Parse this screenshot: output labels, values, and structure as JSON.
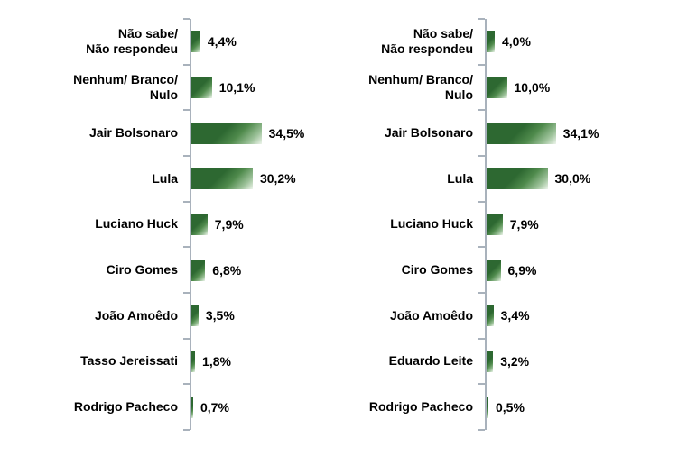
{
  "page": {
    "background": "#ffffff",
    "description": "Two horizontal bar charts of Brazilian presidential poll results, values in percent with comma decimals"
  },
  "colors": {
    "bar_dark": "#2d6831",
    "bar_light": "#eef5ec",
    "axis": "#a9b2bc",
    "text": "#000000"
  },
  "chart_data": [
    {
      "type": "bar",
      "orientation": "horizontal",
      "title": "",
      "xlabel": "",
      "ylabel": "",
      "xlim": [
        0,
        40
      ],
      "grid": false,
      "legend": null,
      "categories": [
        "Não sabe/\nNão respondeu",
        "Nenhum/ Branco/\nNulo",
        "Jair Bolsonaro",
        "Lula",
        "Luciano Huck",
        "Ciro Gomes",
        "João Amoêdo",
        "Tasso Jereissati",
        "Rodrigo Pacheco"
      ],
      "values": [
        4.4,
        10.1,
        34.5,
        30.2,
        7.9,
        6.8,
        3.5,
        1.8,
        0.7
      ],
      "value_labels": [
        "4,4%",
        "10,1%",
        "34,5%",
        "30,2%",
        "7,9%",
        "6,8%",
        "3,5%",
        "1,8%",
        "0,7%"
      ]
    },
    {
      "type": "bar",
      "orientation": "horizontal",
      "title": "",
      "xlabel": "",
      "ylabel": "",
      "xlim": [
        0,
        40
      ],
      "grid": false,
      "legend": null,
      "categories": [
        "Não sabe/\nNão respondeu",
        "Nenhum/ Branco/\nNulo",
        "Jair Bolsonaro",
        "Lula",
        "Luciano Huck",
        "Ciro Gomes",
        "João Amoêdo",
        "Eduardo Leite",
        "Rodrigo Pacheco"
      ],
      "values": [
        4.0,
        10.0,
        34.1,
        30.0,
        7.9,
        6.9,
        3.4,
        3.2,
        0.5
      ],
      "value_labels": [
        "4,0%",
        "10,0%",
        "34,1%",
        "30,0%",
        "7,9%",
        "6,9%",
        "3,4%",
        "3,2%",
        "0,5%"
      ]
    }
  ]
}
